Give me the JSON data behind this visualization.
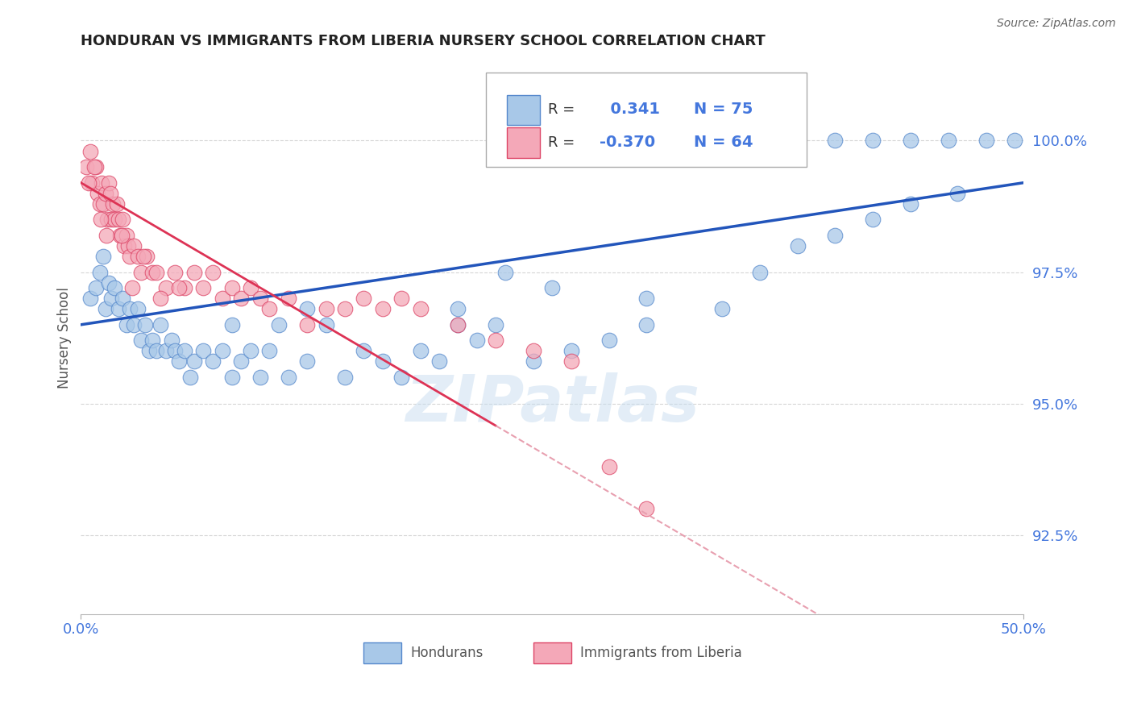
{
  "title": "HONDURAN VS IMMIGRANTS FROM LIBERIA NURSERY SCHOOL CORRELATION CHART",
  "source": "Source: ZipAtlas.com",
  "ylabel": "Nursery School",
  "ytick_values": [
    92.5,
    95.0,
    97.5,
    100.0
  ],
  "xlim": [
    0.0,
    50.0
  ],
  "ylim": [
    91.0,
    101.5
  ],
  "legend1_r": "0.341",
  "legend1_n": "75",
  "legend2_r": "-0.370",
  "legend2_n": "64",
  "blue_color": "#a8c8e8",
  "pink_color": "#f4a8b8",
  "blue_edge_color": "#5588cc",
  "pink_edge_color": "#dd4466",
  "blue_line_color": "#2255bb",
  "pink_line_color": "#dd3355",
  "pink_dash_color": "#e8a0b0",
  "grid_color": "#cccccc",
  "title_color": "#222222",
  "axis_label_color": "#4477dd",
  "watermark_color": "#c8ddf0",
  "blue_scatter_x": [
    0.5,
    0.8,
    1.0,
    1.2,
    1.3,
    1.5,
    1.6,
    1.8,
    2.0,
    2.2,
    2.4,
    2.6,
    2.8,
    3.0,
    3.2,
    3.4,
    3.6,
    3.8,
    4.0,
    4.2,
    4.5,
    4.8,
    5.0,
    5.2,
    5.5,
    5.8,
    6.0,
    6.5,
    7.0,
    7.5,
    8.0,
    8.5,
    9.0,
    9.5,
    10.0,
    10.5,
    11.0,
    12.0,
    13.0,
    14.0,
    15.0,
    16.0,
    17.0,
    18.0,
    19.0,
    20.0,
    21.0,
    22.0,
    24.0,
    26.0,
    28.0,
    30.0,
    35.0,
    36.0,
    37.0,
    38.0,
    40.0,
    42.0,
    44.0,
    46.0,
    48.0,
    49.5,
    22.5,
    25.0,
    30.0,
    34.0,
    36.0,
    38.0,
    40.0,
    42.0,
    44.0,
    46.5,
    8.0,
    12.0,
    20.0
  ],
  "blue_scatter_y": [
    97.0,
    97.2,
    97.5,
    97.8,
    96.8,
    97.3,
    97.0,
    97.2,
    96.8,
    97.0,
    96.5,
    96.8,
    96.5,
    96.8,
    96.2,
    96.5,
    96.0,
    96.2,
    96.0,
    96.5,
    96.0,
    96.2,
    96.0,
    95.8,
    96.0,
    95.5,
    95.8,
    96.0,
    95.8,
    96.0,
    95.5,
    95.8,
    96.0,
    95.5,
    96.0,
    96.5,
    95.5,
    95.8,
    96.5,
    95.5,
    96.0,
    95.8,
    95.5,
    96.0,
    95.8,
    96.5,
    96.2,
    96.5,
    95.8,
    96.0,
    96.2,
    96.5,
    100.0,
    100.0,
    100.0,
    100.0,
    100.0,
    100.0,
    100.0,
    100.0,
    100.0,
    100.0,
    97.5,
    97.2,
    97.0,
    96.8,
    97.5,
    98.0,
    98.2,
    98.5,
    98.8,
    99.0,
    96.5,
    96.8,
    96.8
  ],
  "pink_scatter_x": [
    0.3,
    0.5,
    0.6,
    0.8,
    0.9,
    1.0,
    1.1,
    1.2,
    1.3,
    1.4,
    1.5,
    1.6,
    1.7,
    1.8,
    1.9,
    2.0,
    2.1,
    2.2,
    2.3,
    2.4,
    2.5,
    2.6,
    2.8,
    3.0,
    3.2,
    3.5,
    3.8,
    4.0,
    4.5,
    5.0,
    5.5,
    6.0,
    6.5,
    7.0,
    7.5,
    8.0,
    8.5,
    9.0,
    9.5,
    10.0,
    11.0,
    12.0,
    13.0,
    14.0,
    15.0,
    16.0,
    17.0,
    18.0,
    20.0,
    22.0,
    24.0,
    26.0,
    28.0,
    30.0,
    0.4,
    0.7,
    1.05,
    1.35,
    1.55,
    2.15,
    2.7,
    3.3,
    4.2,
    5.2
  ],
  "pink_scatter_y": [
    99.5,
    99.8,
    99.2,
    99.5,
    99.0,
    98.8,
    99.2,
    98.8,
    99.0,
    98.5,
    99.2,
    98.5,
    98.8,
    98.5,
    98.8,
    98.5,
    98.2,
    98.5,
    98.0,
    98.2,
    98.0,
    97.8,
    98.0,
    97.8,
    97.5,
    97.8,
    97.5,
    97.5,
    97.2,
    97.5,
    97.2,
    97.5,
    97.2,
    97.5,
    97.0,
    97.2,
    97.0,
    97.2,
    97.0,
    96.8,
    97.0,
    96.5,
    96.8,
    96.8,
    97.0,
    96.8,
    97.0,
    96.8,
    96.5,
    96.2,
    96.0,
    95.8,
    93.8,
    93.0,
    99.2,
    99.5,
    98.5,
    98.2,
    99.0,
    98.2,
    97.2,
    97.8,
    97.0,
    97.2
  ]
}
